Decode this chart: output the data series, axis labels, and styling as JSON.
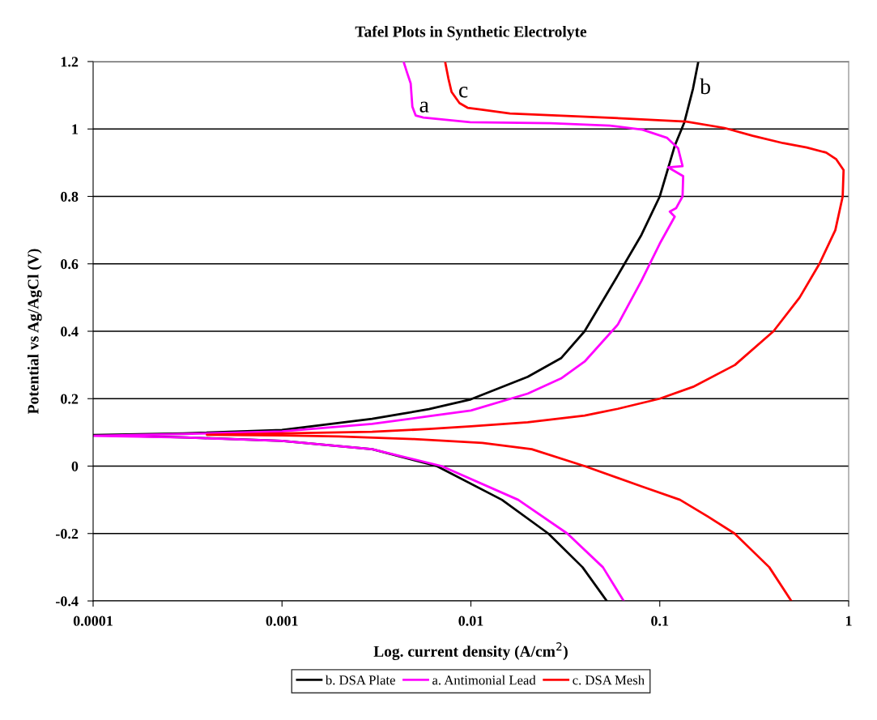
{
  "chart_data": {
    "type": "line",
    "title": "Tafel Plots in Synthetic Electrolyte",
    "xlabel": "Log. current density (A/cm$^{2}$)",
    "ylabel": "Potential vs Ag/AgCl (V)",
    "log": "x",
    "xlim": [
      0.0001,
      1
    ],
    "xticks": [
      0.0001,
      0.001,
      0.01,
      0.1,
      1
    ],
    "ylim": [
      -0.4,
      1.2
    ],
    "yticks": [
      -0.4,
      -0.2,
      0,
      0.2,
      0.4,
      0.6,
      0.8,
      1,
      1.2
    ],
    "grid": "y",
    "legend": "bottom",
    "marker": "none",
    "line_style": "solid",
    "series": [
      {
        "name": "b. DSA Plate",
        "color": "#000000",
        "x": [
          0.0524,
          0.039,
          0.0257,
          0.0146,
          0.0066,
          0.003,
          0.001,
          0.00031,
          0.0001,
          0.0003,
          0.001,
          0.003,
          0.006,
          0.01,
          0.02,
          0.03,
          0.04,
          0.06,
          0.08,
          0.1,
          0.12,
          0.135,
          0.15,
          0.16
        ],
        "values": [
          -0.4,
          -0.3,
          -0.2,
          -0.1,
          0,
          0.05,
          0.075,
          0.085,
          0.092,
          0.097,
          0.107,
          0.14,
          0.169,
          0.198,
          0.265,
          0.32,
          0.4,
          0.566,
          0.686,
          0.8,
          0.95,
          1.02,
          1.12,
          1.2
        ]
      },
      {
        "name": "a. Antimonial Lead",
        "color": "#ff00ff",
        "x": [
          0.0644,
          0.05,
          0.0324,
          0.0178,
          0.007,
          0.003,
          0.001,
          0.0003,
          0.0001,
          0.0003,
          0.001,
          0.003,
          0.006,
          0.01,
          0.02,
          0.03,
          0.04,
          0.06,
          0.08,
          0.1,
          0.12,
          0.113,
          0.122,
          0.132,
          0.133,
          0.111,
          0.132,
          0.125,
          0.109,
          0.081,
          0.0545,
          0.0265,
          0.0099,
          0.0056,
          0.0051,
          0.0049,
          0.0048,
          0.0046,
          0.0044
        ],
        "values": [
          -0.4,
          -0.3,
          -0.2,
          -0.1,
          0,
          0.05,
          0.075,
          0.085,
          0.09,
          0.095,
          0.103,
          0.125,
          0.148,
          0.165,
          0.215,
          0.26,
          0.31,
          0.42,
          0.55,
          0.66,
          0.74,
          0.755,
          0.765,
          0.8,
          0.86,
          0.886,
          0.89,
          0.943,
          0.974,
          0.998,
          1.01,
          1.017,
          1.02,
          1.034,
          1.04,
          1.066,
          1.135,
          1.166,
          1.2
        ]
      },
      {
        "name": "c. DSA Mesh",
        "color": "#ff0000",
        "x": [
          0.497,
          0.38,
          0.249,
          0.18,
          0.128,
          0.08,
          0.04,
          0.021,
          0.0115,
          0.005,
          0.002,
          0.001,
          0.0004,
          0.001,
          0.003,
          0.006,
          0.01,
          0.02,
          0.04,
          0.06,
          0.1,
          0.15,
          0.25,
          0.4,
          0.55,
          0.7,
          0.85,
          0.93,
          0.94,
          0.86,
          0.76,
          0.6,
          0.45,
          0.31,
          0.22,
          0.138,
          0.051,
          0.0161,
          0.0112,
          0.0096,
          0.0087,
          0.0079,
          0.0076,
          0.0073
        ],
        "values": [
          -0.4,
          -0.3,
          -0.2,
          -0.15,
          -0.1,
          -0.06,
          0,
          0.05,
          0.069,
          0.08,
          0.088,
          0.091,
          0.093,
          0.097,
          0.102,
          0.11,
          0.118,
          0.13,
          0.15,
          0.17,
          0.2,
          0.235,
          0.3,
          0.4,
          0.5,
          0.6,
          0.7,
          0.8,
          0.878,
          0.91,
          0.93,
          0.945,
          0.958,
          0.98,
          1.003,
          1.022,
          1.034,
          1.046,
          1.058,
          1.063,
          1.077,
          1.11,
          1.15,
          1.2
        ]
      }
    ],
    "annotations": [
      {
        "text": "a",
        "x": 0.0049,
        "y": 1.066
      },
      {
        "text": "c",
        "x": 0.0079,
        "y": 1.11
      },
      {
        "text": "b",
        "x": 0.15,
        "y": 1.12
      }
    ]
  }
}
